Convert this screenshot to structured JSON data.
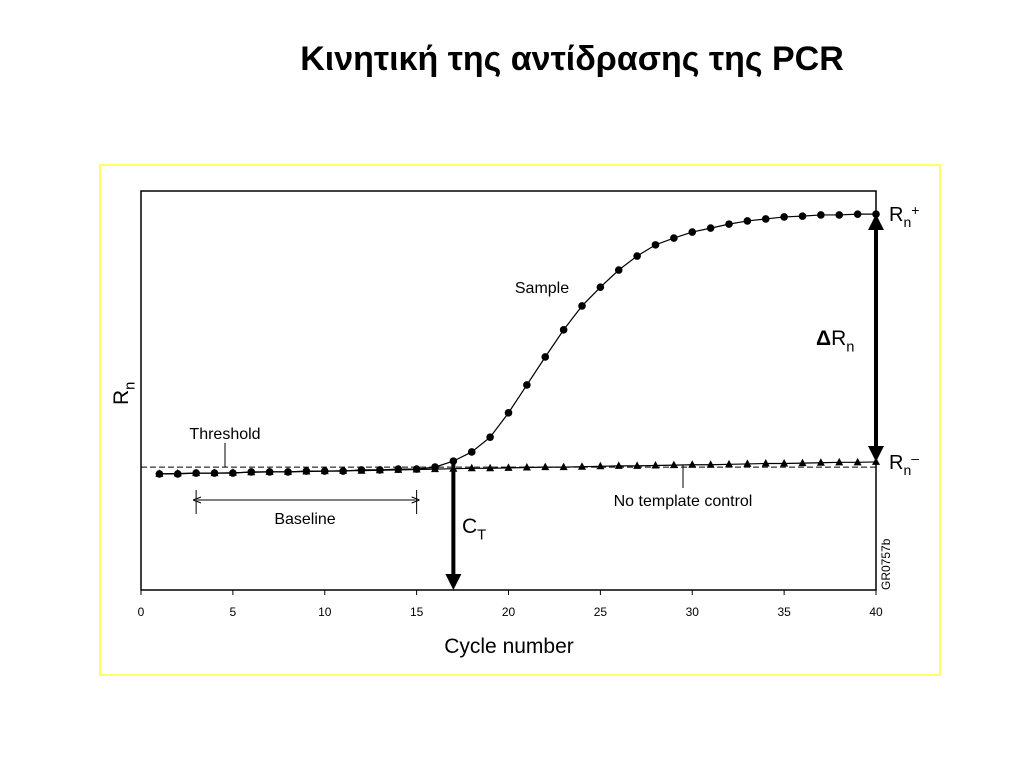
{
  "chart_data": {
    "type": "line",
    "title": "Κινητική της αντίδρασης της PCR",
    "xlabel": "Cycle number",
    "ylabel": {
      "text": "R",
      "sub": "n"
    },
    "x": [
      1,
      2,
      3,
      4,
      5,
      6,
      7,
      8,
      9,
      10,
      11,
      12,
      13,
      14,
      15,
      16,
      17,
      18,
      19,
      20,
      21,
      22,
      23,
      24,
      25,
      26,
      27,
      28,
      29,
      30,
      31,
      32,
      33,
      34,
      35,
      36,
      37,
      38,
      39,
      40
    ],
    "xlim": [
      0,
      40
    ],
    "xticks": [
      0,
      5,
      10,
      15,
      20,
      25,
      30,
      35,
      40
    ],
    "ylim": [
      0,
      100
    ],
    "series": [
      {
        "name": "Sample",
        "color": "#000000",
        "marker": "circle",
        "values": [
          29.1,
          29.1,
          29.3,
          29.3,
          29.3,
          29.6,
          29.6,
          29.6,
          29.8,
          29.8,
          29.8,
          30.1,
          30.1,
          30.3,
          30.3,
          30.8,
          32.3,
          34.6,
          38.3,
          44.4,
          51.4,
          58.4,
          65.2,
          71.2,
          75.9,
          80.2,
          83.7,
          86.5,
          88.2,
          89.7,
          90.7,
          91.7,
          92.5,
          93.0,
          93.5,
          93.7,
          94.0,
          94.0,
          94.2,
          94.2
        ]
      },
      {
        "name": "No template control",
        "color": "#000000",
        "marker": "triangle",
        "values": [
          29.1,
          29.2,
          29.3,
          29.3,
          29.4,
          29.5,
          29.6,
          29.6,
          29.7,
          29.8,
          29.9,
          29.9,
          30.0,
          30.1,
          30.2,
          30.3,
          30.4,
          30.5,
          30.5,
          30.6,
          30.7,
          30.8,
          30.8,
          30.9,
          31.0,
          31.1,
          31.1,
          31.2,
          31.3,
          31.4,
          31.4,
          31.5,
          31.6,
          31.7,
          31.7,
          31.8,
          31.9,
          32.0,
          32.0,
          32.1
        ]
      }
    ],
    "threshold": {
      "label": "Threshold",
      "value": 30.8
    },
    "baseline": {
      "label": "Baseline",
      "range": [
        3,
        15
      ]
    },
    "ct": {
      "label": "C",
      "sub": "T",
      "x": 17
    },
    "delta": {
      "symbol": "Δ",
      "label": "R",
      "sub": "n"
    },
    "rn_plus": {
      "label": "R",
      "sub": "n",
      "sup": "+"
    },
    "rn_minus": {
      "label": "R",
      "sub": "n",
      "sup": "–"
    },
    "code": "GR0757b"
  }
}
